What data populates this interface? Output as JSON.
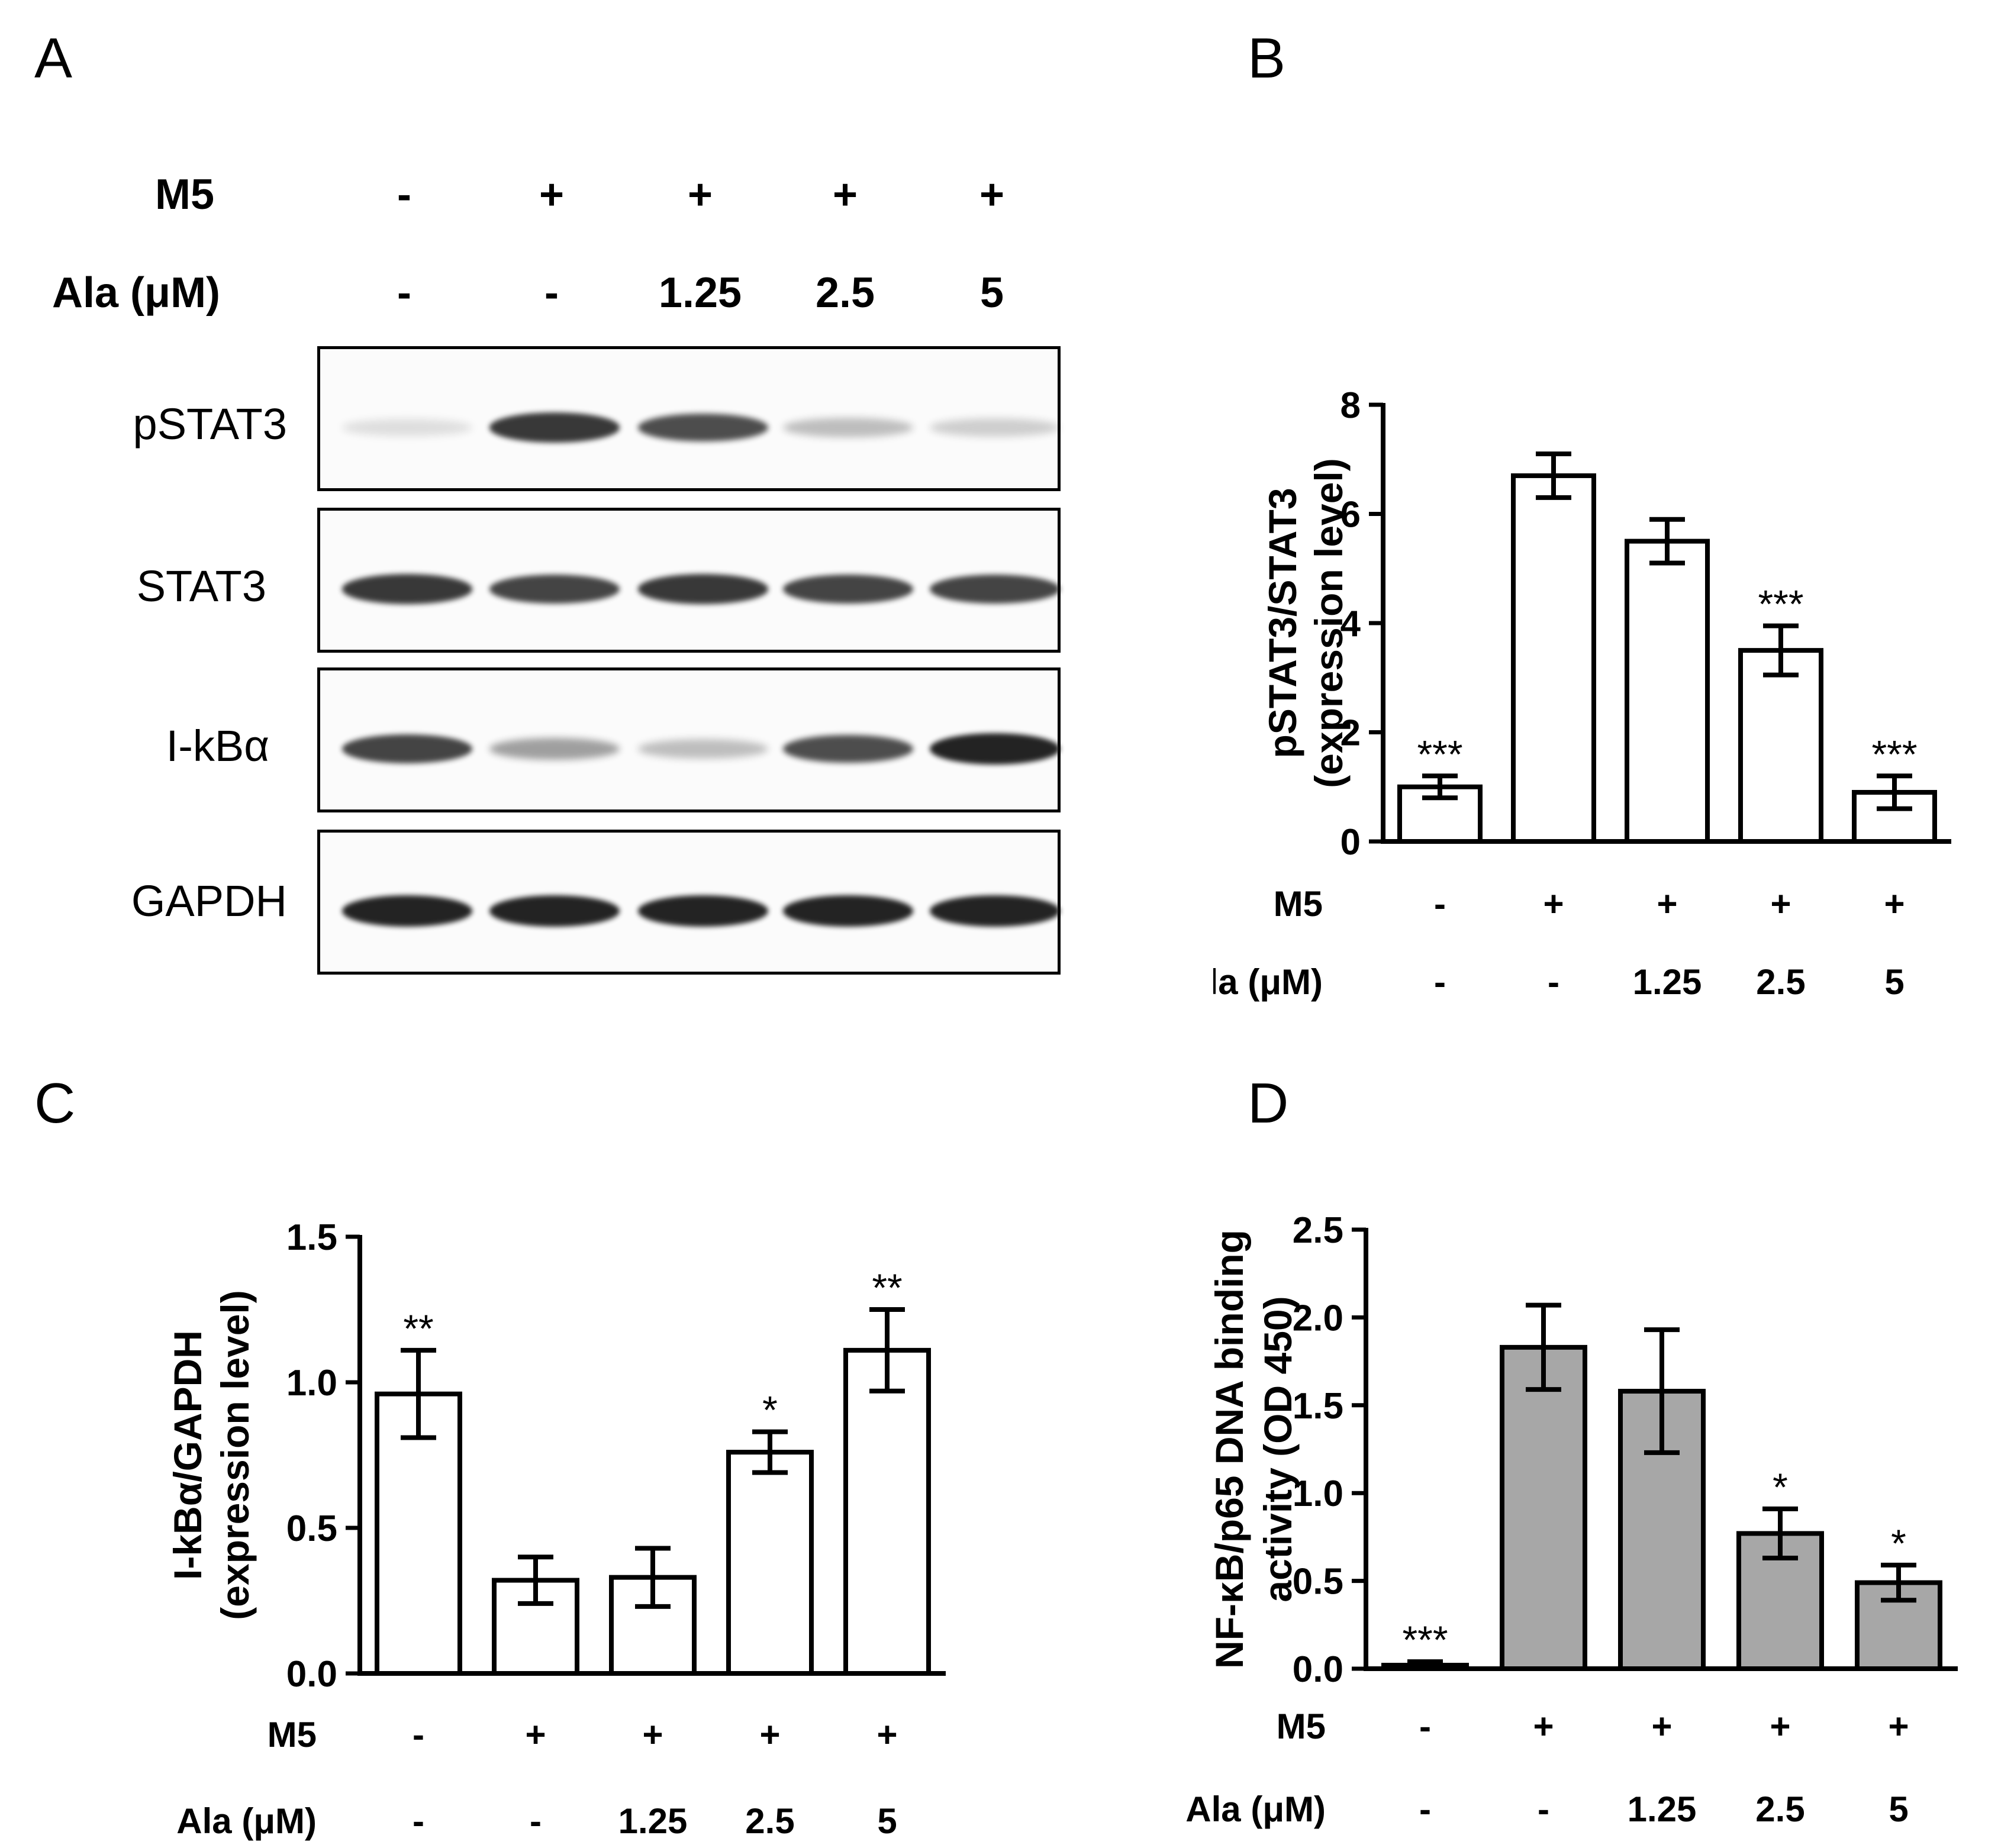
{
  "panels": {
    "A": "A",
    "B": "B",
    "C": "C",
    "D": "D"
  },
  "conditions": {
    "m5_label": "M5",
    "ala_label": "Ala (μM)",
    "m5": [
      "-",
      "+",
      "+",
      "+",
      "+"
    ],
    "ala": [
      "-",
      "-",
      "1.25",
      "2.5",
      "5"
    ]
  },
  "blot": {
    "rows": [
      {
        "name": "pSTAT3",
        "intensity": [
          0.05,
          0.85,
          0.75,
          0.2,
          0.12
        ]
      },
      {
        "name": "STAT3",
        "intensity": [
          0.85,
          0.8,
          0.85,
          0.8,
          0.8
        ]
      },
      {
        "name": "I-kBα",
        "intensity": [
          0.8,
          0.35,
          0.2,
          0.75,
          0.95
        ]
      },
      {
        "name": "GAPDH",
        "intensity": [
          0.95,
          0.95,
          0.95,
          0.95,
          0.95
        ]
      }
    ]
  },
  "chart_data": [
    {
      "panel": "B",
      "type": "bar",
      "categories": [
        "M5 -, Ala -",
        "M5 +, Ala -",
        "M5 +, Ala 1.25",
        "M5 +, Ala 2.5",
        "M5 +, Ala 5"
      ],
      "values": [
        1.0,
        6.7,
        5.5,
        3.5,
        0.9
      ],
      "errors": [
        0.2,
        0.4,
        0.4,
        0.45,
        0.3
      ],
      "significance": [
        "***",
        "",
        "",
        "***",
        "***"
      ],
      "ylabel_lines": [
        "pSTAT3/STAT3",
        "(expression level)"
      ],
      "ylim": [
        0,
        8
      ],
      "yticks": [
        "0",
        "2",
        "4",
        "6",
        "8"
      ],
      "fill": "#ffffff"
    },
    {
      "panel": "C",
      "type": "bar",
      "categories": [
        "M5 -, Ala -",
        "M5 +, Ala -",
        "M5 +, Ala 1.25",
        "M5 +, Ala 2.5",
        "M5 +, Ala 5"
      ],
      "values": [
        0.96,
        0.32,
        0.33,
        0.76,
        1.11
      ],
      "errors": [
        0.15,
        0.08,
        0.1,
        0.07,
        0.14
      ],
      "significance": [
        "**",
        "",
        "",
        "*",
        "**"
      ],
      "ylabel_lines": [
        "I-kBα/GAPDH",
        "(expression level)"
      ],
      "ylim": [
        0,
        1.5
      ],
      "yticks": [
        "0.0",
        "0.5",
        "1.0",
        "1.5"
      ],
      "fill": "#ffffff"
    },
    {
      "panel": "D",
      "type": "bar",
      "categories": [
        "M5 -, Ala -",
        "M5 +, Ala -",
        "M5 +, Ala 1.25",
        "M5 +, Ala 2.5",
        "M5 +, Ala 5"
      ],
      "values": [
        0.02,
        1.83,
        1.58,
        0.77,
        0.49
      ],
      "errors": [
        0.02,
        0.24,
        0.35,
        0.14,
        0.1
      ],
      "significance": [
        "***",
        "",
        "",
        "*",
        "*"
      ],
      "ylabel_lines": [
        "NF-κB/p65 DNA binding",
        "activity (OD 450)"
      ],
      "ylim": [
        0,
        2.5
      ],
      "yticks": [
        "0.0",
        "0.5",
        "1.0",
        "1.5",
        "2.0",
        "2.5"
      ],
      "fill": "#a7a7a7"
    }
  ]
}
